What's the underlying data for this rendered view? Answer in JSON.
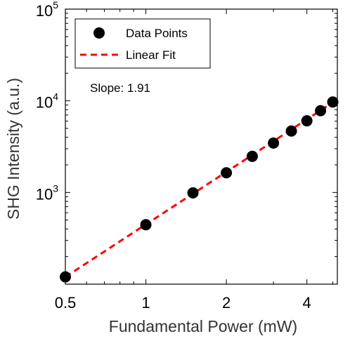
{
  "chart_data": {
    "type": "scatter",
    "title": "",
    "xlabel": "Fundamental Power (mW)",
    "ylabel": "SHG Intensity (a.u.)",
    "x_scale": "log",
    "y_scale": "log",
    "xlim": [
      0.5,
      5.2
    ],
    "ylim": [
      100,
      100000
    ],
    "x_ticks": [
      0.5,
      1,
      2,
      4
    ],
    "x_tick_labels": [
      "0.5",
      "1",
      "2",
      "4"
    ],
    "y_ticks": [
      1000,
      10000,
      100000
    ],
    "y_tick_base": "10",
    "y_tick_exponents": [
      "3",
      "4",
      "5"
    ],
    "grid": false,
    "legend_position": "top-left",
    "series": [
      {
        "name": "Data Points",
        "kind": "scatter",
        "color": "#000000",
        "x": [
          0.5,
          1.0,
          1.5,
          2.0,
          2.5,
          3.0,
          3.5,
          4.0,
          4.5,
          5.0
        ],
        "y": [
          120,
          445,
          990,
          1640,
          2480,
          3460,
          4680,
          6050,
          7800,
          9700
        ]
      },
      {
        "name": "Linear Fit",
        "kind": "line",
        "style": "dashed",
        "color": "#ff0000",
        "x": [
          0.5,
          5.2
        ],
        "y": [
          120,
          10340
        ]
      }
    ],
    "annotation": "Slope: 1.91"
  }
}
